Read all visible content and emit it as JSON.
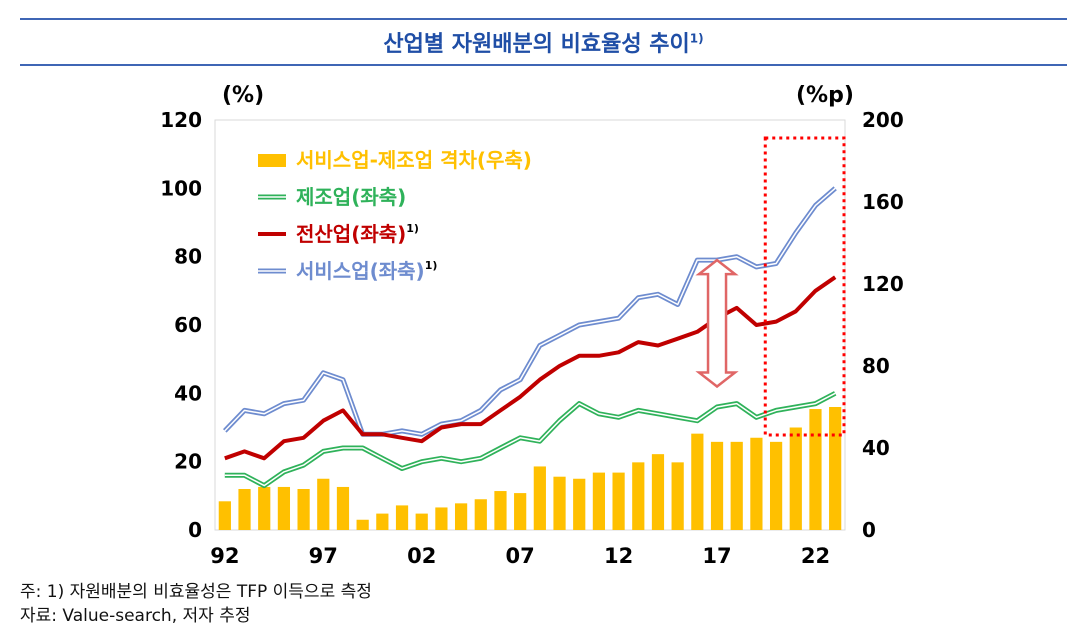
{
  "header": {
    "title": "산업별 자원배분의 비효율성 추이",
    "title_sup": "1)"
  },
  "footnotes": {
    "note": "주: 1) 자원배분의 비효율성은 TFP 이득으로 측정",
    "source": "자료: Value-search, 저자 추정"
  },
  "chart_data": {
    "type": "bar+line",
    "y_left_label": "(%)",
    "y_right_label": "(%p)",
    "y_left_lim": [
      0,
      120
    ],
    "y_right_lim": [
      0,
      200
    ],
    "y_left_ticks": [
      "0",
      "20",
      "40",
      "60",
      "80",
      "100",
      "120"
    ],
    "y_right_ticks": [
      "0",
      "40",
      "80",
      "120",
      "160",
      "200"
    ],
    "x_years": [
      1992,
      1993,
      1994,
      1995,
      1996,
      1997,
      1998,
      1999,
      2000,
      2001,
      2002,
      2003,
      2004,
      2005,
      2006,
      2007,
      2008,
      2009,
      2010,
      2011,
      2012,
      2013,
      2014,
      2015,
      2016,
      2017,
      2018,
      2019,
      2020,
      2021,
      2022,
      2023
    ],
    "x_tick_labels": [
      {
        "year": 1992,
        "label": "92"
      },
      {
        "year": 1997,
        "label": "97"
      },
      {
        "year": 2002,
        "label": "02"
      },
      {
        "year": 2007,
        "label": "07"
      },
      {
        "year": 2012,
        "label": "12"
      },
      {
        "year": 2017,
        "label": "17"
      },
      {
        "year": 2022,
        "label": "22"
      }
    ],
    "legend": [
      {
        "key": "gap",
        "label": "서비스업-제조업 격차(우축)",
        "sup": ""
      },
      {
        "key": "manufacturing",
        "label": "제조업(좌축)",
        "sup": ""
      },
      {
        "key": "all_industries",
        "label": "전산업(좌축)",
        "sup": "1)"
      },
      {
        "key": "services",
        "label": "서비스업(좌축)",
        "sup": "1)"
      }
    ],
    "bars": {
      "name": "서비스업-제조업 격차(우축)",
      "axis": "right",
      "color": "#ffc000",
      "values": [
        14,
        20,
        21,
        21,
        20,
        25,
        21,
        5,
        8,
        12,
        8,
        11,
        13,
        15,
        19,
        18,
        31,
        26,
        25,
        28,
        28,
        33,
        37,
        33,
        47,
        43,
        43,
        45,
        43,
        50,
        59,
        60
      ]
    },
    "series": [
      {
        "name": "제조업(좌축)",
        "axis": "left",
        "color": "#2fb25a",
        "values": [
          16,
          16,
          13,
          17,
          19,
          23,
          24,
          24,
          21,
          18,
          20,
          21,
          20,
          21,
          24,
          27,
          26,
          32,
          37,
          34,
          33,
          35,
          34,
          33,
          32,
          36,
          37,
          33,
          35,
          36,
          37,
          40
        ]
      },
      {
        "name": "전산업(좌축)",
        "axis": "left",
        "color": "#c00000",
        "values": [
          21,
          23,
          21,
          26,
          27,
          32,
          35,
          28,
          28,
          27,
          26,
          30,
          31,
          31,
          35,
          39,
          44,
          48,
          51,
          51,
          52,
          55,
          54,
          56,
          58,
          62,
          65,
          60,
          61,
          64,
          70,
          74
        ]
      },
      {
        "name": "서비스업(좌축)",
        "axis": "left",
        "color": "#6e8ccf",
        "values": [
          29,
          35,
          34,
          37,
          38,
          46,
          44,
          28,
          28,
          29,
          28,
          31,
          32,
          35,
          41,
          44,
          54,
          57,
          60,
          61,
          62,
          68,
          69,
          66,
          79,
          79,
          80,
          77,
          78,
          87,
          95,
          100
        ]
      }
    ],
    "annotations": [
      {
        "type": "double-arrow",
        "from_year": 2017,
        "y_left": [
          42,
          79
        ],
        "color": "#e06666"
      },
      {
        "type": "dotted-box",
        "from_year": 2020,
        "to_year": 2023,
        "color": "#ff0000"
      }
    ]
  }
}
